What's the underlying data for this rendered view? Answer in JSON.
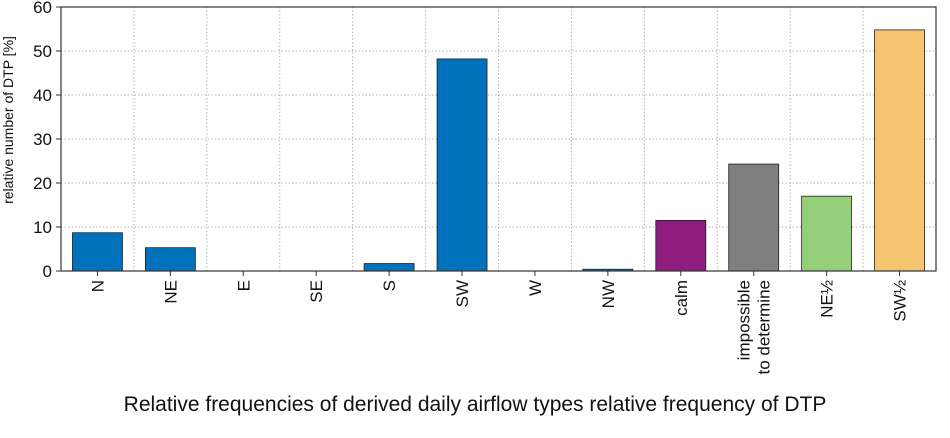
{
  "chart_data": {
    "type": "bar",
    "ylabel": "relative number of DTP [%]",
    "ylim": [
      0,
      60
    ],
    "yticks": [
      0,
      10,
      20,
      30,
      40,
      50,
      60
    ],
    "grid": true,
    "categories": [
      [
        "N"
      ],
      [
        "NE"
      ],
      [
        "E"
      ],
      [
        "SE"
      ],
      [
        "S"
      ],
      [
        "SW"
      ],
      [
        "W"
      ],
      [
        "NW"
      ],
      [
        "calm"
      ],
      [
        "impossible",
        "to determine"
      ],
      [
        "NE½"
      ],
      [
        "SW½"
      ]
    ],
    "values": [
      8.7,
      5.3,
      0,
      0,
      1.7,
      48.2,
      0,
      0.4,
      11.5,
      24.3,
      17.0,
      54.8
    ],
    "colors": [
      "#0072bc",
      "#0072bc",
      "#0072bc",
      "#0072bc",
      "#0072bc",
      "#0072bc",
      "#0072bc",
      "#0072bc",
      "#8e1d7f",
      "#7f7f7f",
      "#95cf79",
      "#f4c46f"
    ]
  },
  "caption": "Relative frequencies of derived daily airflow types relative frequency of DTP"
}
